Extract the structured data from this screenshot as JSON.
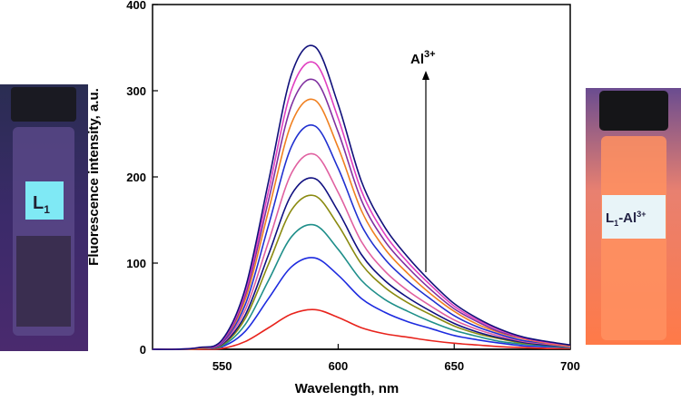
{
  "chart_data": {
    "type": "line",
    "x_label": "Wavelength, nm",
    "y_label": "Fluorescence intensity, a.u.",
    "annotation": {
      "text": "Al",
      "sup": "3+"
    },
    "xlim": [
      520,
      700
    ],
    "xticks": [
      550,
      600,
      650,
      700
    ],
    "ylim": [
      0,
      400
    ],
    "yticks": [
      0,
      100,
      200,
      300,
      400
    ],
    "x": [
      520,
      530,
      540,
      550,
      560,
      570,
      580,
      590,
      600,
      610,
      620,
      630,
      640,
      650,
      660,
      670,
      680,
      690,
      700
    ],
    "series": [
      {
        "color": "#000000",
        "values": [
          0,
          0,
          0,
          0,
          0,
          0,
          0,
          0,
          0,
          0,
          0,
          0,
          0,
          0,
          0,
          0,
          0,
          0,
          0
        ]
      },
      {
        "color": "#e8231c",
        "values": [
          0,
          0,
          0,
          1,
          9,
          25,
          41,
          46,
          37,
          25,
          18,
          14,
          10,
          7,
          5,
          3,
          2,
          1,
          1
        ]
      },
      {
        "color": "#1d2bdf",
        "values": [
          0,
          0,
          1,
          3,
          21,
          59,
          96,
          106,
          86,
          59,
          43,
          32,
          24,
          16,
          11,
          7,
          4,
          3,
          2
        ]
      },
      {
        "color": "#1f8f8a",
        "values": [
          0,
          0,
          1,
          4,
          29,
          80,
          131,
          144,
          116,
          80,
          58,
          44,
          32,
          22,
          15,
          9,
          6,
          4,
          2
        ]
      },
      {
        "color": "#8a8a10",
        "values": [
          0,
          0,
          1,
          5,
          36,
          99,
          162,
          178,
          144,
          99,
          72,
          54,
          40,
          27,
          18,
          12,
          7,
          5,
          3
        ]
      },
      {
        "color": "#101080",
        "values": [
          0,
          0,
          1,
          6,
          40,
          110,
          180,
          198,
          160,
          110,
          80,
          60,
          44,
          30,
          20,
          13,
          8,
          5,
          3
        ]
      },
      {
        "color": "#e060a0",
        "values": [
          0,
          0,
          1,
          7,
          46,
          125,
          205,
          226,
          182,
          125,
          91,
          68,
          50,
          34,
          23,
          15,
          9,
          6,
          3
        ]
      },
      {
        "color": "#2030d0",
        "values": [
          0,
          0,
          1,
          8,
          52,
          144,
          236,
          259,
          210,
          144,
          105,
          79,
          58,
          39,
          26,
          17,
          10,
          7,
          4
        ]
      },
      {
        "color": "#f08020",
        "values": [
          0,
          0,
          1,
          9,
          58,
          161,
          263,
          289,
          234,
          161,
          117,
          88,
          64,
          44,
          29,
          19,
          12,
          7,
          4
        ]
      },
      {
        "color": "#8030a0",
        "values": [
          0,
          0,
          2,
          9,
          63,
          173,
          284,
          312,
          252,
          173,
          126,
          95,
          69,
          47,
          32,
          20,
          13,
          8,
          5
        ]
      },
      {
        "color": "#e040c0",
        "values": [
          0,
          0,
          2,
          10,
          67,
          184,
          302,
          332,
          268,
          184,
          134,
          101,
          74,
          50,
          34,
          22,
          13,
          8,
          5
        ]
      },
      {
        "color": "#10107a",
        "values": [
          0,
          0,
          2,
          11,
          71,
          195,
          320,
          351,
          284,
          195,
          142,
          107,
          78,
          53,
          36,
          23,
          14,
          9,
          5
        ]
      }
    ]
  },
  "photos": [
    {
      "label": "L",
      "sub": "1"
    },
    {
      "label": "L",
      "sub": "1",
      "rest": "-Al",
      "sup": "3+"
    }
  ]
}
